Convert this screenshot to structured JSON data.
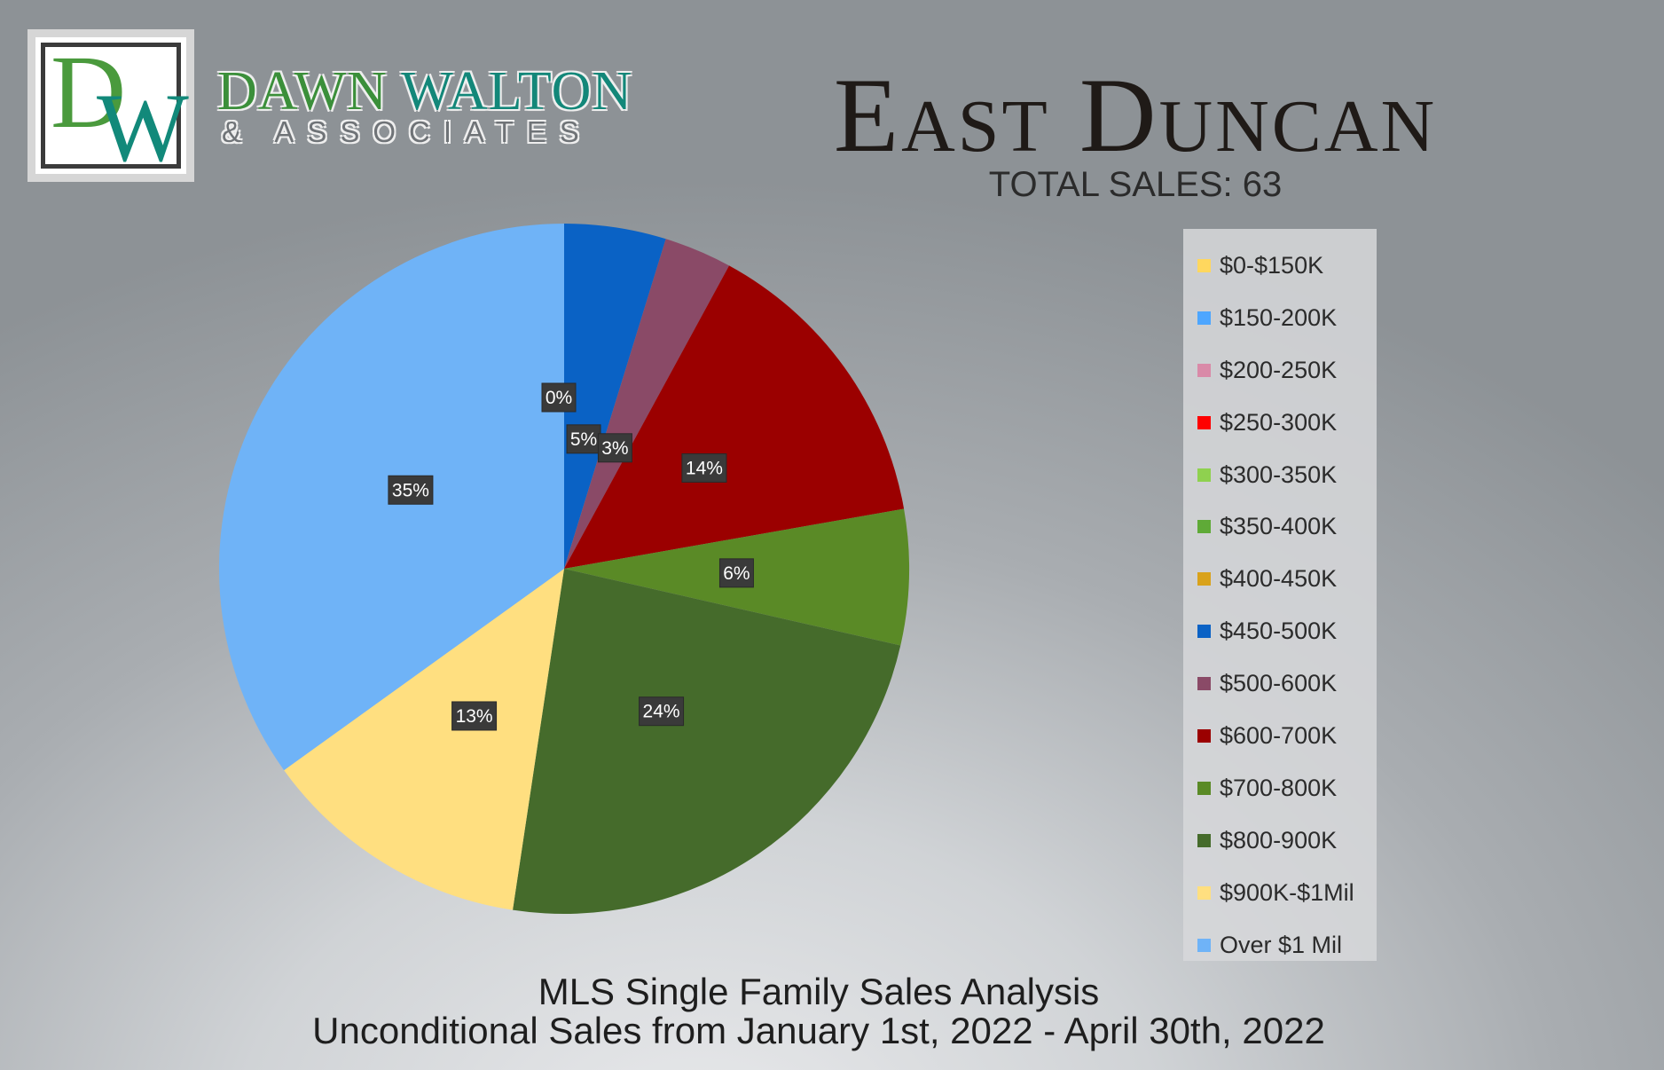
{
  "brand": {
    "monogram_d": "D",
    "monogram_w": "W",
    "name_1": "DAWN",
    "name_2": "WALTON",
    "sub": "& ASSOCIATES"
  },
  "header": {
    "title": "East Duncan",
    "total_sales": "TOTAL SALES: 63"
  },
  "footer": {
    "line1": "MLS Single Family Sales Analysis",
    "line2": "Unconditional Sales from January 1st, 2022 - April 30th, 2022"
  },
  "chart_data": {
    "type": "pie",
    "categories": [
      "$0-$150K",
      "$150-200K",
      "$200-250K",
      "$250-300K",
      "$300-350K",
      "$350-400K",
      "$400-450K",
      "$450-500K",
      "$500-600K",
      "$600-700K",
      "$700-800K",
      "$800-900K",
      "$900K-$1Mil",
      "Over $1 Mil"
    ],
    "values": [
      0,
      0,
      0,
      0,
      0,
      0,
      0,
      3,
      2,
      9,
      4,
      15,
      8,
      22
    ],
    "data_labels": [
      "",
      "",
      "",
      "",
      "",
      "",
      "0%",
      "5%",
      "3%",
      "14%",
      "6%",
      "24%",
      "13%",
      "35%"
    ],
    "colors": [
      "#ffd75e",
      "#4da6ff",
      "#d98aa8",
      "#ff0000",
      "#8fd14f",
      "#5faa37",
      "#d9a21b",
      "#0a62c5",
      "#8a4a67",
      "#9b0000",
      "#5a8a26",
      "#456b2b",
      "#ffdf80",
      "#6fb3f7"
    ],
    "legend_position": "right"
  }
}
